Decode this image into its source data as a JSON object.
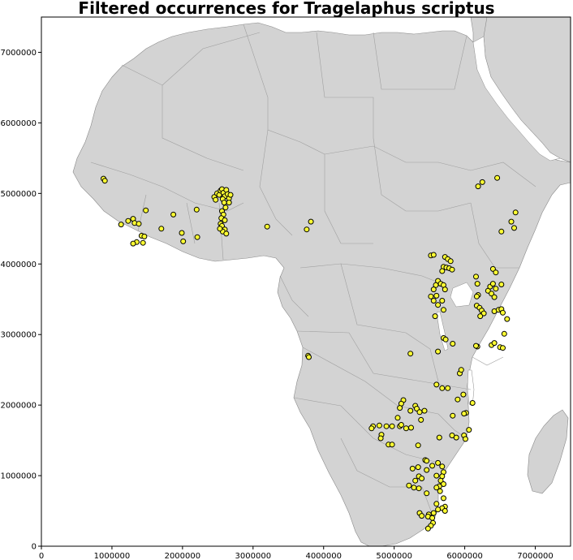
{
  "title": "Filtered occurrences for Tragelaphus scriptus",
  "colors": {
    "land": "#d3d3d3",
    "ocean": "#ffffff",
    "border": "#a9a9a9",
    "point_fill": "#ffff33",
    "point_stroke": "#000000"
  },
  "chart_data": {
    "type": "scatter",
    "title": "Filtered occurrences for Tragelaphus scriptus",
    "xlim": [
      0,
      7500000
    ],
    "ylim": [
      0,
      7500000
    ],
    "x_ticks": [
      0,
      1000000,
      2000000,
      3000000,
      4000000,
      5000000,
      6000000,
      7000000
    ],
    "y_ticks": [
      0,
      1000000,
      2000000,
      3000000,
      4000000,
      5000000,
      6000000,
      7000000
    ],
    "grid": false,
    "points": [
      [
        880000,
        5210000
      ],
      [
        900000,
        5180000
      ],
      [
        1130000,
        4560000
      ],
      [
        1230000,
        4610000
      ],
      [
        1300000,
        4640000
      ],
      [
        1320000,
        4580000
      ],
      [
        1380000,
        4570000
      ],
      [
        1420000,
        4400000
      ],
      [
        1460000,
        4390000
      ],
      [
        1350000,
        4310000
      ],
      [
        1300000,
        4290000
      ],
      [
        1440000,
        4300000
      ],
      [
        1480000,
        4760000
      ],
      [
        1700000,
        4500000
      ],
      [
        1870000,
        4700000
      ],
      [
        1990000,
        4440000
      ],
      [
        2010000,
        4320000
      ],
      [
        2200000,
        4770000
      ],
      [
        2210000,
        4380000
      ],
      [
        2450000,
        4950000
      ],
      [
        2470000,
        4910000
      ],
      [
        2490000,
        5000000
      ],
      [
        2520000,
        4980000
      ],
      [
        2540000,
        5040000
      ],
      [
        2560000,
        5060000
      ],
      [
        2580000,
        5010000
      ],
      [
        2600000,
        4960000
      ],
      [
        2620000,
        5050000
      ],
      [
        2640000,
        4990000
      ],
      [
        2660000,
        4930000
      ],
      [
        2680000,
        4980000
      ],
      [
        2570000,
        4920000
      ],
      [
        2590000,
        4870000
      ],
      [
        2610000,
        4800000
      ],
      [
        2560000,
        4750000
      ],
      [
        2580000,
        4700000
      ],
      [
        2550000,
        4650000
      ],
      [
        2600000,
        4620000
      ],
      [
        2540000,
        4570000
      ],
      [
        2560000,
        4540000
      ],
      [
        2600000,
        4490000
      ],
      [
        2570000,
        4460000
      ],
      [
        2620000,
        4430000
      ],
      [
        2530000,
        4500000
      ],
      [
        2660000,
        4870000
      ],
      [
        3200000,
        4530000
      ],
      [
        3760000,
        4490000
      ],
      [
        3820000,
        4600000
      ],
      [
        3780000,
        2700000
      ],
      [
        3790000,
        2680000
      ],
      [
        5520000,
        4120000
      ],
      [
        5560000,
        4130000
      ],
      [
        5720000,
        4100000
      ],
      [
        5760000,
        4070000
      ],
      [
        5800000,
        4040000
      ],
      [
        5700000,
        3960000
      ],
      [
        5740000,
        3950000
      ],
      [
        5780000,
        3940000
      ],
      [
        5820000,
        3920000
      ],
      [
        5680000,
        3900000
      ],
      [
        5620000,
        3760000
      ],
      [
        5660000,
        3720000
      ],
      [
        5700000,
        3700000
      ],
      [
        5590000,
        3700000
      ],
      [
        5560000,
        3640000
      ],
      [
        5720000,
        3640000
      ],
      [
        5600000,
        3550000
      ],
      [
        5520000,
        3540000
      ],
      [
        5560000,
        3480000
      ],
      [
        5680000,
        3480000
      ],
      [
        5620000,
        3420000
      ],
      [
        5700000,
        3350000
      ],
      [
        5580000,
        3260000
      ],
      [
        5700000,
        2950000
      ],
      [
        5730000,
        2930000
      ],
      [
        5830000,
        2870000
      ],
      [
        5620000,
        2760000
      ],
      [
        5230000,
        2730000
      ],
      [
        6160000,
        3820000
      ],
      [
        6180000,
        3720000
      ],
      [
        6330000,
        3620000
      ],
      [
        6360000,
        3680000
      ],
      [
        6400000,
        3720000
      ],
      [
        6440000,
        3650000
      ],
      [
        6380000,
        3580000
      ],
      [
        6420000,
        3530000
      ],
      [
        6520000,
        3710000
      ],
      [
        6190000,
        3560000
      ],
      [
        6170000,
        3540000
      ],
      [
        6170000,
        3410000
      ],
      [
        6210000,
        3380000
      ],
      [
        6240000,
        3340000
      ],
      [
        6270000,
        3300000
      ],
      [
        6220000,
        3260000
      ],
      [
        6420000,
        3330000
      ],
      [
        6480000,
        3350000
      ],
      [
        6520000,
        3360000
      ],
      [
        6540000,
        3310000
      ],
      [
        6600000,
        3220000
      ],
      [
        6560000,
        3010000
      ],
      [
        6380000,
        2850000
      ],
      [
        6420000,
        2880000
      ],
      [
        6500000,
        2820000
      ],
      [
        6540000,
        2810000
      ],
      [
        6180000,
        2830000
      ],
      [
        6160000,
        2840000
      ],
      [
        6190000,
        5100000
      ],
      [
        6250000,
        5160000
      ],
      [
        6460000,
        5220000
      ],
      [
        6520000,
        4460000
      ],
      [
        6660000,
        4600000
      ],
      [
        6700000,
        4510000
      ],
      [
        6720000,
        4730000
      ],
      [
        6400000,
        3930000
      ],
      [
        6440000,
        3880000
      ],
      [
        5130000,
        2070000
      ],
      [
        5100000,
        2020000
      ],
      [
        5080000,
        1960000
      ],
      [
        5050000,
        1820000
      ],
      [
        5230000,
        1920000
      ],
      [
        5300000,
        1990000
      ],
      [
        5320000,
        1950000
      ],
      [
        5360000,
        1900000
      ],
      [
        5430000,
        1920000
      ],
      [
        5600000,
        2290000
      ],
      [
        5680000,
        2240000
      ],
      [
        5760000,
        2240000
      ],
      [
        5930000,
        2450000
      ],
      [
        5950000,
        2500000
      ],
      [
        5980000,
        2150000
      ],
      [
        5900000,
        2080000
      ],
      [
        6110000,
        2030000
      ],
      [
        6020000,
        1890000
      ],
      [
        5990000,
        1880000
      ],
      [
        5830000,
        1850000
      ],
      [
        5880000,
        1540000
      ],
      [
        5820000,
        1570000
      ],
      [
        5990000,
        1570000
      ],
      [
        6010000,
        1520000
      ],
      [
        6060000,
        1650000
      ],
      [
        4890000,
        1700000
      ],
      [
        4970000,
        1700000
      ],
      [
        5080000,
        1700000
      ],
      [
        5100000,
        1720000
      ],
      [
        4790000,
        1710000
      ],
      [
        4700000,
        1700000
      ],
      [
        4680000,
        1670000
      ],
      [
        4820000,
        1580000
      ],
      [
        4810000,
        1530000
      ],
      [
        4920000,
        1440000
      ],
      [
        4970000,
        1440000
      ],
      [
        5170000,
        1670000
      ],
      [
        5240000,
        1680000
      ],
      [
        5340000,
        1430000
      ],
      [
        5380000,
        1790000
      ],
      [
        5640000,
        1540000
      ],
      [
        5440000,
        1220000
      ],
      [
        5460000,
        1210000
      ],
      [
        5540000,
        1140000
      ],
      [
        5620000,
        1180000
      ],
      [
        5680000,
        1130000
      ],
      [
        5700000,
        1050000
      ],
      [
        5680000,
        990000
      ],
      [
        5660000,
        930000
      ],
      [
        5700000,
        880000
      ],
      [
        5640000,
        850000
      ],
      [
        5600000,
        830000
      ],
      [
        5600000,
        1000000
      ],
      [
        5260000,
        1100000
      ],
      [
        5340000,
        1120000
      ],
      [
        5460000,
        1080000
      ],
      [
        5350000,
        990000
      ],
      [
        5390000,
        960000
      ],
      [
        5300000,
        930000
      ],
      [
        5210000,
        860000
      ],
      [
        5280000,
        830000
      ],
      [
        5350000,
        820000
      ],
      [
        5460000,
        750000
      ],
      [
        5650000,
        780000
      ],
      [
        5700000,
        680000
      ],
      [
        5720000,
        560000
      ],
      [
        5680000,
        540000
      ],
      [
        5620000,
        520000
      ],
      [
        5720000,
        500000
      ],
      [
        5560000,
        470000
      ],
      [
        5490000,
        450000
      ],
      [
        5360000,
        470000
      ],
      [
        5390000,
        430000
      ],
      [
        5480000,
        420000
      ],
      [
        5540000,
        400000
      ],
      [
        5550000,
        330000
      ],
      [
        5520000,
        290000
      ],
      [
        5480000,
        250000
      ],
      [
        5600000,
        600000
      ]
    ]
  },
  "axes": {
    "x_tick_labels": [
      "0",
      "1000000",
      "2000000",
      "3000000",
      "4000000",
      "5000000",
      "6000000",
      "7000000"
    ],
    "y_tick_labels": [
      "0",
      "1000000",
      "2000000",
      "3000000",
      "4000000",
      "5000000",
      "6000000",
      "7000000"
    ]
  }
}
